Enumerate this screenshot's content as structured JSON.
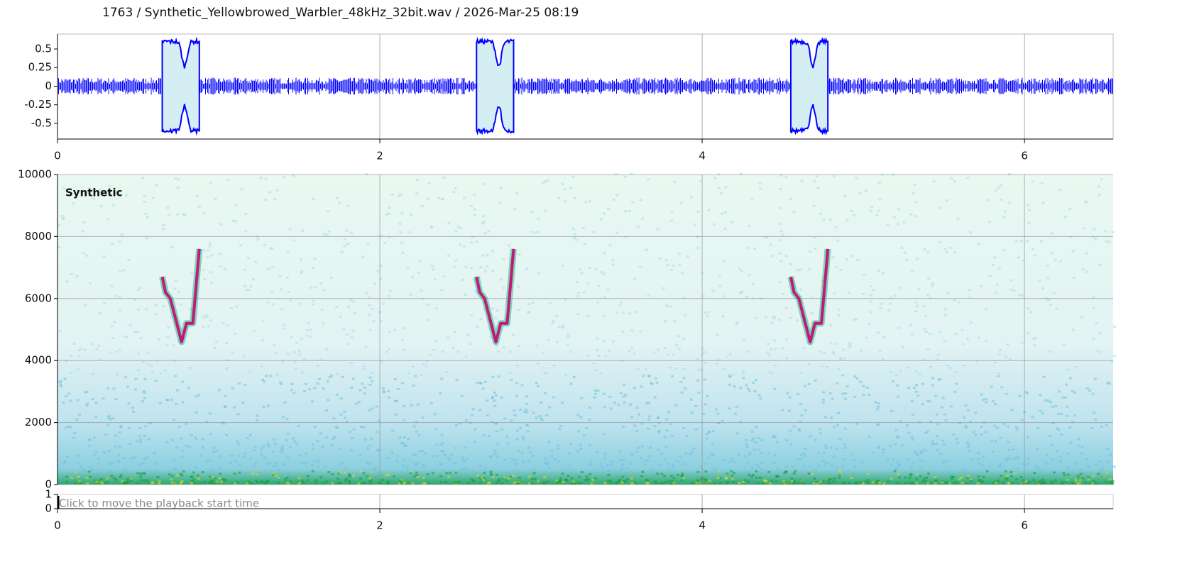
{
  "header": {
    "title": "1763 / Synthetic_Yellowbrowed_Warbler_48kHz_32bit.wav / 2026-Mar-25 08:19"
  },
  "chart_data": [
    {
      "type": "waveform",
      "color": "#0000ff",
      "fill": "#d4eef4",
      "xlim": [
        0,
        6.55
      ],
      "ylim": [
        -0.71,
        0.7
      ],
      "xticks": [
        0,
        2,
        4,
        6
      ],
      "yticks": [
        0.5,
        0.25,
        0,
        -0.25,
        -0.5
      ],
      "calls": [
        {
          "start": 0.65,
          "end": 0.88,
          "amplitude": 0.6
        },
        {
          "start": 2.6,
          "end": 2.83,
          "amplitude": 0.6
        },
        {
          "start": 4.55,
          "end": 4.78,
          "amplitude": 0.6
        }
      ]
    },
    {
      "type": "spectrogram",
      "label": "Synthetic",
      "xlim": [
        0,
        6.55
      ],
      "ylim": [
        0,
        10000
      ],
      "xticks": [
        0,
        2,
        4,
        6
      ],
      "yticks": [
        0,
        2000,
        4000,
        6000,
        8000,
        10000
      ],
      "grid": true,
      "color": "#c2187e",
      "series": [
        {
          "x": [
            0.65,
            0.67,
            0.7,
            0.72,
            0.77,
            0.8,
            0.84,
            0.88
          ],
          "values": [
            6700,
            6200,
            6000,
            5600,
            4600,
            5200,
            5200,
            7600
          ]
        },
        {
          "x": [
            2.6,
            2.62,
            2.65,
            2.67,
            2.72,
            2.75,
            2.79,
            2.83
          ],
          "values": [
            6700,
            6200,
            6000,
            5600,
            4600,
            5200,
            5200,
            7600
          ]
        },
        {
          "x": [
            4.55,
            4.57,
            4.6,
            4.62,
            4.67,
            4.7,
            4.74,
            4.78
          ],
          "values": [
            6700,
            6200,
            6000,
            5600,
            4600,
            5200,
            5200,
            7600
          ]
        }
      ]
    },
    {
      "type": "playback",
      "hint": "Click to move the playback start time",
      "xlim": [
        0,
        6.55
      ],
      "ylim": [
        0,
        1
      ],
      "xticks": [
        0,
        2,
        4,
        6
      ],
      "yticks": [
        0,
        1
      ]
    }
  ]
}
